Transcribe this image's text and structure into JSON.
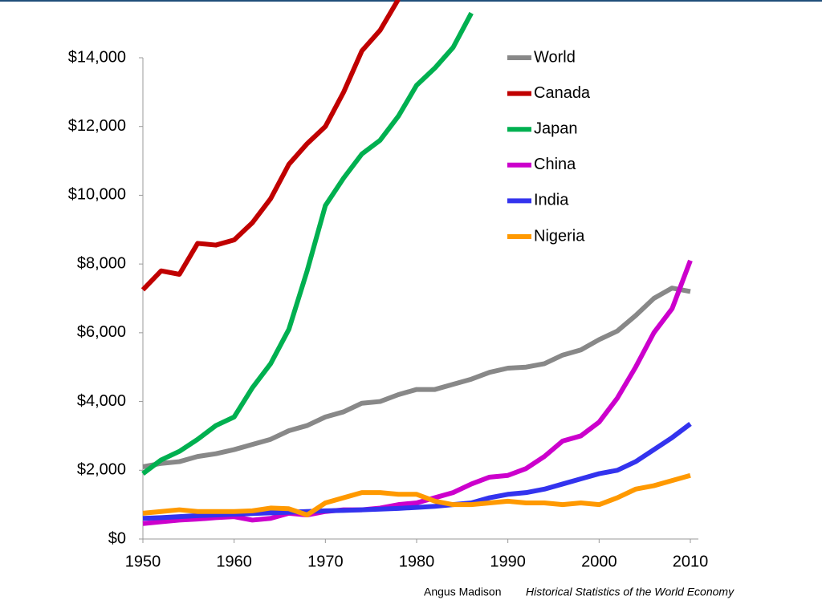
{
  "chart_data": {
    "type": "line",
    "x": [
      1950,
      1952,
      1954,
      1956,
      1958,
      1960,
      1962,
      1964,
      1966,
      1968,
      1970,
      1972,
      1974,
      1976,
      1978,
      1980,
      1982,
      1984,
      1986,
      1988,
      1990,
      1992,
      1994,
      1996,
      1998,
      2000,
      2002,
      2004,
      2006,
      2008,
      2010
    ],
    "series": [
      {
        "name": "World",
        "color": "#888888",
        "values": [
          2100,
          2200,
          2250,
          2400,
          2480,
          2600,
          2750,
          2900,
          3150,
          3300,
          3550,
          3700,
          3950,
          4000,
          4200,
          4350,
          4350,
          4500,
          4650,
          4850,
          4970,
          5000,
          5100,
          5350,
          5500,
          5800,
          6050,
          6500,
          7000,
          7300,
          7200
        ]
      },
      {
        "name": "Canada",
        "color": "#c00000",
        "values": [
          7250,
          7800,
          7700,
          8600,
          8550,
          8700,
          9200,
          9900,
          10900,
          11500,
          12000,
          13000,
          14200,
          14800,
          15700,
          null,
          null,
          null,
          null,
          null,
          null,
          null,
          null,
          null,
          null,
          null,
          null,
          null,
          null,
          null,
          null
        ]
      },
      {
        "name": "Japan",
        "color": "#00b050",
        "values": [
          1900,
          2300,
          2550,
          2900,
          3300,
          3550,
          4400,
          5100,
          6100,
          7800,
          9700,
          10500,
          11200,
          11600,
          12300,
          13200,
          13700,
          14300,
          15300,
          null,
          null,
          null,
          null,
          null,
          null,
          null,
          null,
          null,
          null,
          null,
          null
        ]
      },
      {
        "name": "China",
        "color": "#cc00cc",
        "values": [
          450,
          500,
          550,
          580,
          620,
          650,
          550,
          600,
          750,
          700,
          800,
          850,
          850,
          900,
          1000,
          1050,
          1200,
          1350,
          1600,
          1800,
          1850,
          2050,
          2400,
          2850,
          3000,
          3400,
          4100,
          5000,
          6000,
          6700,
          8100
        ]
      },
      {
        "name": "India",
        "color": "#3333ee",
        "values": [
          600,
          620,
          650,
          680,
          700,
          720,
          740,
          760,
          780,
          800,
          820,
          830,
          850,
          870,
          890,
          920,
          950,
          1000,
          1050,
          1200,
          1300,
          1350,
          1450,
          1600,
          1750,
          1900,
          2000,
          2250,
          2600,
          2950,
          3350
        ]
      },
      {
        "name": "Nigeria",
        "color": "#ff9900",
        "values": [
          750,
          800,
          850,
          800,
          800,
          800,
          820,
          900,
          880,
          700,
          1050,
          1200,
          1350,
          1350,
          1300,
          1300,
          1100,
          1000,
          1000,
          1050,
          1100,
          1050,
          1050,
          1000,
          1050,
          1000,
          1200,
          1450,
          1550,
          1700,
          1850
        ]
      }
    ],
    "xlim": [
      1950,
      2010
    ],
    "xticks": [
      1950,
      1960,
      1970,
      1980,
      1990,
      2000,
      2010
    ],
    "ylim": [
      0,
      14000
    ],
    "yticks": [
      {
        "value": 0,
        "label": "$0"
      },
      {
        "value": 2000,
        "label": "$2,000"
      },
      {
        "value": 4000,
        "label": "$4,000"
      },
      {
        "value": 6000,
        "label": "$6,000"
      },
      {
        "value": 8000,
        "label": "$8,000"
      },
      {
        "value": 10000,
        "label": "$10,000"
      },
      {
        "value": 12000,
        "label": "$12,000"
      },
      {
        "value": 14000,
        "label": "$14,000"
      }
    ],
    "source_author": "Angus Madison",
    "source_title": "Historical Statistics of the World Economy"
  }
}
